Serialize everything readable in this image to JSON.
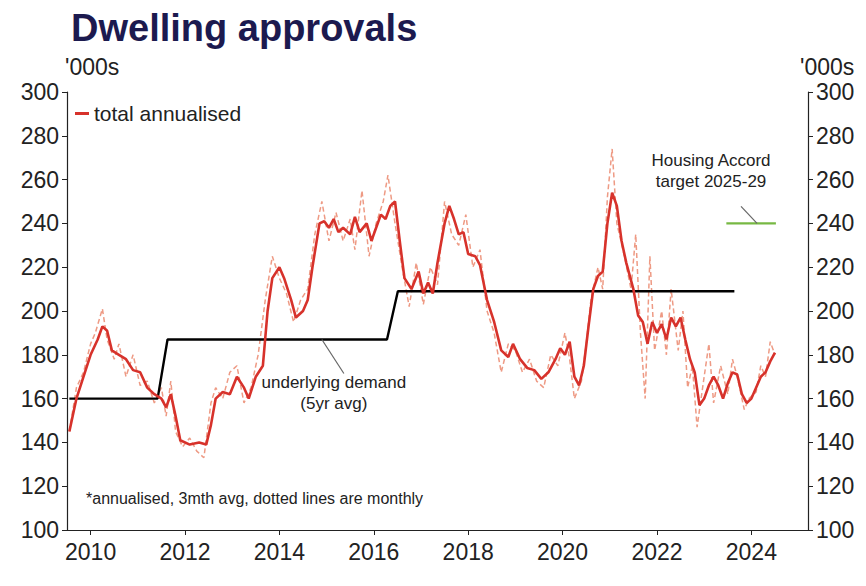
{
  "chart_data": {
    "type": "line",
    "title": "Dwelling approvals",
    "ylabel": "'000s",
    "y2label": "'000s",
    "legend": "top-left",
    "grid": false,
    "xlim": [
      2009.5,
      2025.2
    ],
    "xticks": [
      2010,
      2012,
      2014,
      2016,
      2018,
      2020,
      2022,
      2024
    ],
    "ylim": [
      100,
      300
    ],
    "yticks": [
      100,
      120,
      140,
      160,
      180,
      200,
      220,
      240,
      260,
      280,
      300
    ],
    "y2lim": [
      100,
      300
    ],
    "y2ticks": [
      100,
      120,
      140,
      160,
      180,
      200,
      220,
      240,
      260,
      280,
      300
    ],
    "note": "*annualised, 3mth avg, dotted lines are monthly",
    "series": [
      {
        "color": "#ee9a84",
        "line_style": "dashed",
        "x": [
          2009.55,
          2009.7,
          2009.85,
          2010.0,
          2010.1,
          2010.25,
          2010.35,
          2010.5,
          2010.6,
          2010.75,
          2010.9,
          2011.05,
          2011.2,
          2011.35,
          2011.5,
          2011.6,
          2011.7,
          2011.8,
          2011.95,
          2012.1,
          2012.25,
          2012.4,
          2012.55,
          2012.65,
          2012.8,
          2012.95,
          2013.1,
          2013.25,
          2013.4,
          2013.55,
          2013.7,
          2013.85,
          2014.0,
          2014.15,
          2014.3,
          2014.45,
          2014.6,
          2014.75,
          2014.9,
          2015.05,
          2015.2,
          2015.35,
          2015.5,
          2015.6,
          2015.75,
          2015.9,
          2016.05,
          2016.2,
          2016.3,
          2016.45,
          2016.6,
          2016.75,
          2016.9,
          2017.05,
          2017.2,
          2017.35,
          2017.5,
          2017.65,
          2017.8,
          2017.95,
          2018.1,
          2018.25,
          2018.4,
          2018.55,
          2018.7,
          2018.85,
          2019.0,
          2019.15,
          2019.3,
          2019.45,
          2019.6,
          2019.75,
          2019.9,
          2020.05,
          2020.15,
          2020.25,
          2020.4,
          2020.5,
          2020.6,
          2020.75,
          2020.85,
          2020.95,
          2021.05,
          2021.15,
          2021.3,
          2021.45,
          2021.55,
          2021.65,
          2021.75,
          2021.85,
          2021.95,
          2022.1,
          2022.2,
          2022.3,
          2022.45,
          2022.55,
          2022.65,
          2022.75,
          2022.85,
          2023.0,
          2023.1,
          2023.2,
          2023.35,
          2023.5,
          2023.6,
          2023.7,
          2023.85,
          2023.95,
          2024.1,
          2024.2,
          2024.3,
          2024.4,
          2024.5
        ],
        "values": [
          145,
          165,
          172,
          185,
          190,
          201,
          187,
          178,
          185,
          170,
          180,
          166,
          168,
          158,
          165,
          152,
          168,
          145,
          138,
          142,
          136,
          133,
          158,
          165,
          160,
          172,
          175,
          158,
          165,
          180,
          205,
          225,
          215,
          208,
          195,
          205,
          210,
          235,
          250,
          232,
          245,
          232,
          242,
          228,
          255,
          225,
          240,
          250,
          262,
          240,
          220,
          202,
          222,
          203,
          220,
          212,
          250,
          235,
          230,
          244,
          220,
          228,
          200,
          190,
          172,
          185,
          182,
          172,
          178,
          168,
          165,
          180,
          175,
          190,
          178,
          160,
          168,
          185,
          205,
          220,
          210,
          252,
          274,
          240,
          226,
          210,
          235,
          190,
          160,
          225,
          182,
          200,
          180,
          210,
          182,
          200,
          165,
          175,
          147,
          170,
          185,
          158,
          175,
          162,
          178,
          170,
          155,
          160,
          163,
          175,
          170,
          186,
          180
        ]
      },
      {
        "name": "total annualised",
        "color": "#d7322b",
        "line_style": "solid",
        "x": [
          2009.55,
          2009.7,
          2009.85,
          2010.0,
          2010.15,
          2010.25,
          2010.35,
          2010.45,
          2010.6,
          2010.75,
          2010.9,
          2011.05,
          2011.2,
          2011.35,
          2011.5,
          2011.6,
          2011.7,
          2011.8,
          2011.9,
          2012.1,
          2012.3,
          2012.45,
          2012.55,
          2012.65,
          2012.8,
          2012.95,
          2013.1,
          2013.25,
          2013.35,
          2013.5,
          2013.65,
          2013.75,
          2013.85,
          2014.0,
          2014.1,
          2014.25,
          2014.35,
          2014.5,
          2014.6,
          2014.7,
          2014.85,
          2014.95,
          2015.05,
          2015.15,
          2015.25,
          2015.35,
          2015.5,
          2015.6,
          2015.7,
          2015.85,
          2015.95,
          2016.05,
          2016.15,
          2016.25,
          2016.35,
          2016.45,
          2016.55,
          2016.65,
          2016.8,
          2016.95,
          2017.05,
          2017.15,
          2017.25,
          2017.35,
          2017.5,
          2017.6,
          2017.7,
          2017.8,
          2017.9,
          2018.0,
          2018.15,
          2018.25,
          2018.4,
          2018.55,
          2018.7,
          2018.85,
          2018.95,
          2019.1,
          2019.25,
          2019.4,
          2019.55,
          2019.7,
          2019.85,
          2019.95,
          2020.05,
          2020.15,
          2020.25,
          2020.35,
          2020.45,
          2020.55,
          2020.65,
          2020.75,
          2020.85,
          2020.95,
          2021.05,
          2021.15,
          2021.25,
          2021.35,
          2021.5,
          2021.6,
          2021.7,
          2021.8,
          2021.9,
          2022.0,
          2022.1,
          2022.2,
          2022.3,
          2022.4,
          2022.5,
          2022.6,
          2022.7,
          2022.8,
          2022.9,
          2023.0,
          2023.1,
          2023.2,
          2023.3,
          2023.4,
          2023.5,
          2023.6,
          2023.7,
          2023.8,
          2023.9,
          2024.0,
          2024.1,
          2024.2,
          2024.3,
          2024.4,
          2024.5
        ],
        "values": [
          145,
          160,
          170,
          180,
          187,
          193,
          191,
          182,
          180,
          178,
          173,
          172,
          165,
          162,
          160,
          156,
          162,
          152,
          141,
          139,
          140,
          139,
          148,
          160,
          163,
          162,
          170,
          165,
          160,
          170,
          175,
          200,
          215,
          220,
          215,
          205,
          197,
          200,
          205,
          220,
          240,
          241,
          238,
          242,
          236,
          238,
          235,
          243,
          236,
          240,
          232,
          238,
          244,
          242,
          248,
          250,
          232,
          215,
          210,
          218,
          208,
          213,
          208,
          222,
          240,
          248,
          242,
          235,
          236,
          226,
          225,
          221,
          205,
          195,
          182,
          179,
          185,
          178,
          174,
          173,
          169,
          172,
          178,
          183,
          180,
          186,
          170,
          166,
          175,
          193,
          210,
          216,
          218,
          240,
          254,
          248,
          232,
          222,
          210,
          198,
          195,
          185,
          195,
          190,
          194,
          187,
          197,
          193,
          197,
          187,
          178,
          172,
          157,
          160,
          166,
          170,
          166,
          160,
          167,
          172,
          171,
          162,
          158,
          160,
          165,
          170,
          172,
          177,
          181
        ]
      },
      {
        "color": "#000000",
        "line_style": "solid",
        "x": [
          2009.55,
          2011.42,
          2011.63,
          2016.28,
          2016.51,
          2023.64
        ],
        "values": [
          160,
          160,
          187,
          187,
          209,
          209
        ]
      },
      {
        "color": "#77b843",
        "line_style": "solid",
        "x": [
          2023.47,
          2024.52
        ],
        "values": [
          240,
          240
        ]
      }
    ],
    "annotations": [
      {
        "lines": [
          "underlying demand",
          "(5yr avg)"
        ],
        "x": 2014.9,
        "y": 187
      },
      {
        "lines": [
          "Housing Accord",
          "target 2025-29"
        ],
        "x": 2024.12,
        "y": 240
      }
    ]
  }
}
